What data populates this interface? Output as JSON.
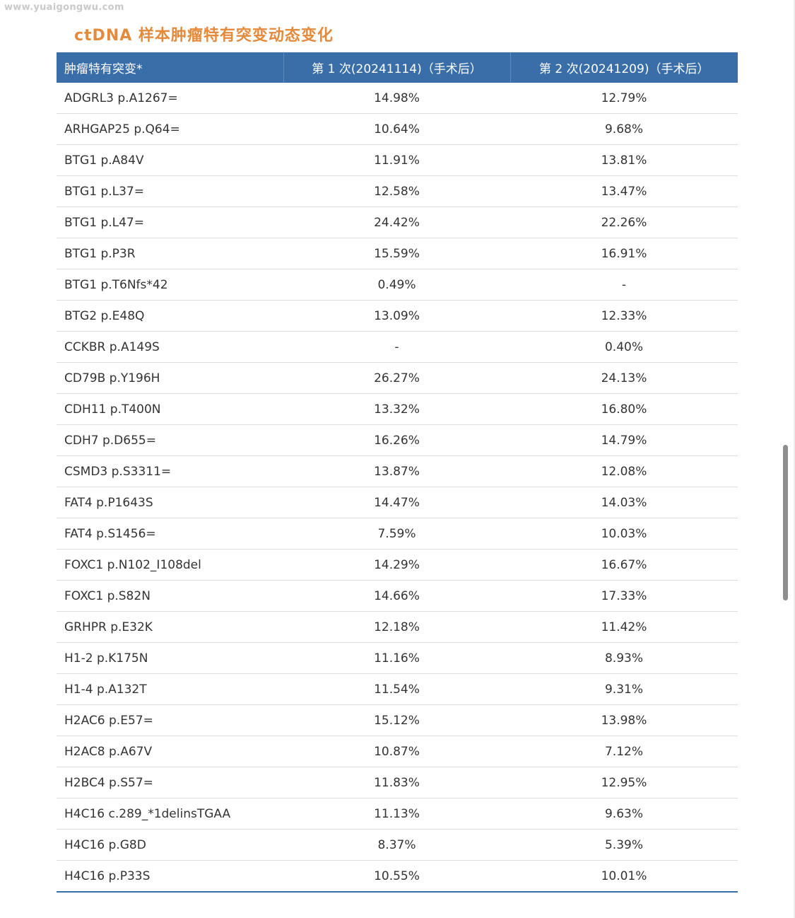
{
  "watermark": "www.yuaigongwu.com",
  "title": "ctDNA 样本肿瘤特有突变动态变化",
  "table": {
    "headers": [
      "肿瘤特有突变*",
      "第 1 次(20241114)（手术后）",
      "第 2 次(20241209)（手术后）"
    ],
    "rows": [
      [
        "ADGRL3 p.A1267=",
        "14.98%",
        "12.79%"
      ],
      [
        "ARHGAP25 p.Q64=",
        "10.64%",
        "9.68%"
      ],
      [
        "BTG1 p.A84V",
        "11.91%",
        "13.81%"
      ],
      [
        "BTG1 p.L37=",
        "12.58%",
        "13.47%"
      ],
      [
        "BTG1 p.L47=",
        "24.42%",
        "22.26%"
      ],
      [
        "BTG1 p.P3R",
        "15.59%",
        "16.91%"
      ],
      [
        "BTG1 p.T6Nfs*42",
        "0.49%",
        "-"
      ],
      [
        "BTG2 p.E48Q",
        "13.09%",
        "12.33%"
      ],
      [
        "CCKBR p.A149S",
        "-",
        "0.40%"
      ],
      [
        "CD79B p.Y196H",
        "26.27%",
        "24.13%"
      ],
      [
        "CDH11 p.T400N",
        "13.32%",
        "16.80%"
      ],
      [
        "CDH7 p.D655=",
        "16.26%",
        "14.79%"
      ],
      [
        "CSMD3 p.S3311=",
        "13.87%",
        "12.08%"
      ],
      [
        "FAT4 p.P1643S",
        "14.47%",
        "14.03%"
      ],
      [
        "FAT4 p.S1456=",
        "7.59%",
        "10.03%"
      ],
      [
        "FOXC1 p.N102_I108del",
        "14.29%",
        "16.67%"
      ],
      [
        "FOXC1 p.S82N",
        "14.66%",
        "17.33%"
      ],
      [
        "GRHPR p.E32K",
        "12.18%",
        "11.42%"
      ],
      [
        "H1-2 p.K175N",
        "11.16%",
        "8.93%"
      ],
      [
        "H1-4 p.A132T",
        "11.54%",
        "9.31%"
      ],
      [
        "H2AC6 p.E57=",
        "15.12%",
        "13.98%"
      ],
      [
        "H2AC8 p.A67V",
        "10.87%",
        "7.12%"
      ],
      [
        "H2BC4 p.S57=",
        "11.83%",
        "12.95%"
      ],
      [
        "H4C16 c.289_*1delinsTGAA",
        "11.13%",
        "9.63%"
      ],
      [
        "H4C16 p.G8D",
        "8.37%",
        "5.39%"
      ],
      [
        "H4C16 p.P33S",
        "10.55%",
        "10.01%"
      ]
    ]
  },
  "colors": {
    "header_bg": "#3a6ea8",
    "title": "#e48a3c",
    "row_text": "#333333"
  }
}
